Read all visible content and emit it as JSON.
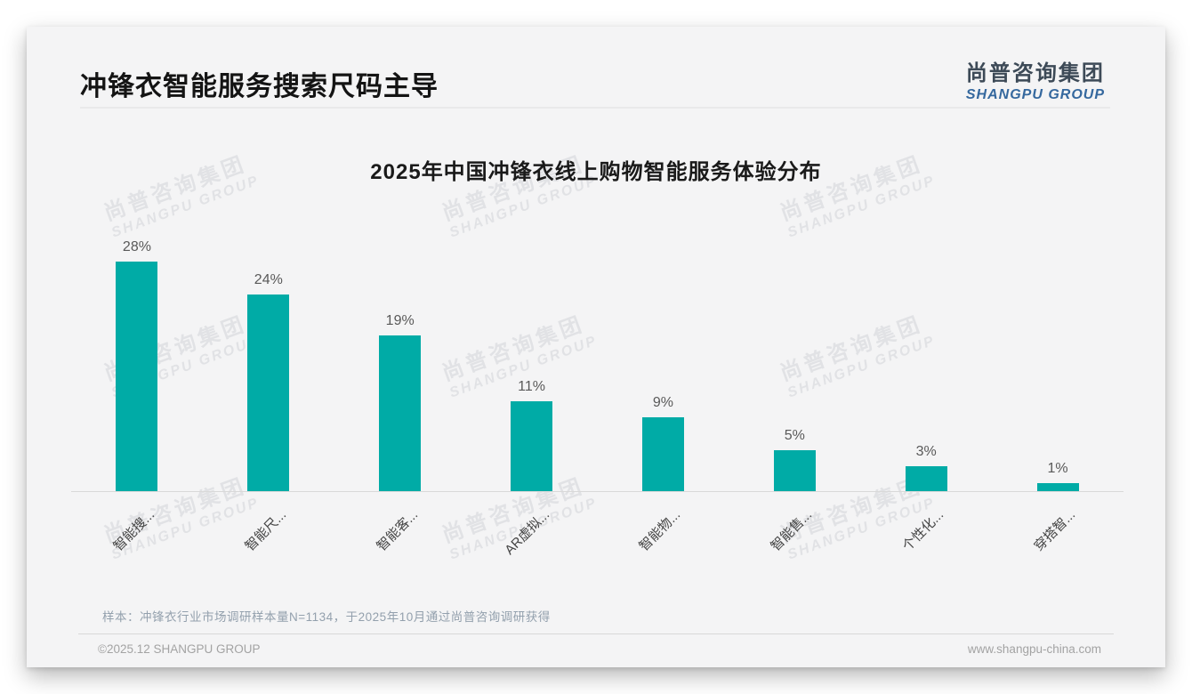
{
  "header": {
    "title": "冲锋衣智能服务搜索尺码主导",
    "logo_cn": "尚普咨询集团",
    "logo_en": "SHANGPU GROUP"
  },
  "watermark": {
    "cn": "尚普咨询集团",
    "en": "SHANGPU GROUP"
  },
  "chart_data": {
    "type": "bar",
    "title": "2025年中国冲锋衣线上购物智能服务体验分布",
    "categories": [
      "智能搜...",
      "智能尺...",
      "智能客...",
      "AR虚拟...",
      "智能物...",
      "智能售...",
      "个性化...",
      "穿搭智..."
    ],
    "values": [
      28,
      24,
      19,
      11,
      9,
      5,
      3,
      1
    ],
    "value_labels": [
      "28%",
      "24%",
      "19%",
      "11%",
      "9%",
      "5%",
      "3%",
      "1%"
    ],
    "xlabel": "",
    "ylabel": "",
    "ylim": [
      0,
      30
    ],
    "grid": false,
    "legend": "none",
    "bar_color": "#00aba6",
    "axis_color": "#d9d9d9"
  },
  "footnote": {
    "sample_note": "样本：冲锋衣行业市场调研样本量N=1134，于2025年10月通过尚普咨询调研获得",
    "copyright": "©2025.12 SHANGPU GROUP",
    "website": "www.shangpu-china.com"
  }
}
